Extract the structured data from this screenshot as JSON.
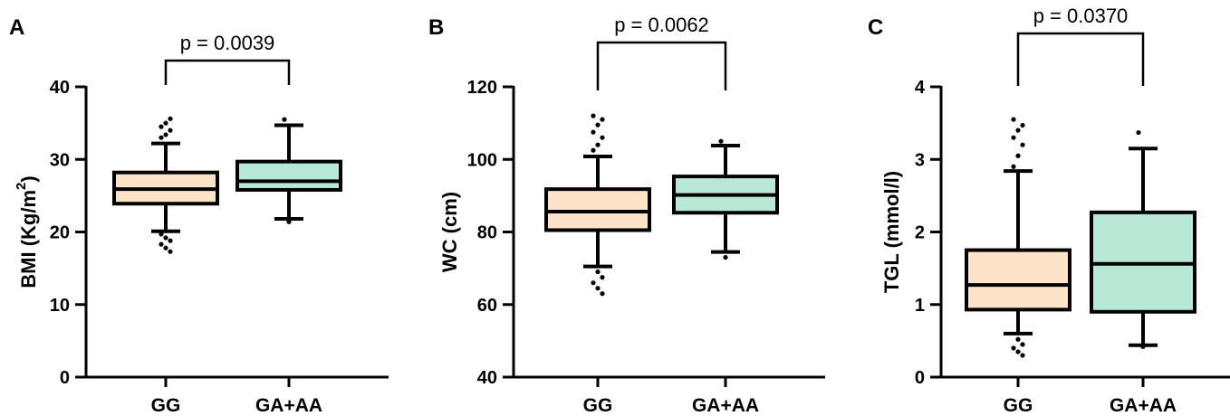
{
  "figure_colors": {
    "GG": "#fde3c8",
    "GA+AA": "#b8e8d6",
    "stroke": "#000000"
  },
  "chart_data": [
    {
      "panel": "A",
      "type": "box",
      "ylabel": "BMI (Kg/m",
      "ylabel_sup": "2",
      "ylabel_close": ")",
      "ylim": [
        0,
        40
      ],
      "yticks": [
        0,
        10,
        20,
        30,
        40
      ],
      "categories": [
        "GG",
        "GA+AA"
      ],
      "boxes": [
        {
          "category": "GG",
          "whisker_low": 20.1,
          "q1": 23.9,
          "median": 25.9,
          "q3": 28.2,
          "whisker_high": 32.2,
          "outliers": [
            33.0,
            33.4,
            34.0,
            34.5,
            35.0,
            35.6,
            19.7,
            19.2,
            18.8,
            18.3,
            17.8,
            17.3
          ]
        },
        {
          "category": "GA+AA",
          "whisker_low": 21.8,
          "q1": 25.8,
          "median": 27.0,
          "q3": 29.7,
          "whisker_high": 34.7,
          "outliers": [
            35.5,
            21.4
          ]
        }
      ],
      "comparison": {
        "text": "p = 0.0039"
      }
    },
    {
      "panel": "B",
      "type": "box",
      "ylabel": "WC (cm)",
      "ylim": [
        40,
        120
      ],
      "yticks": [
        40,
        60,
        80,
        100,
        120
      ],
      "categories": [
        "GG",
        "GA+AA"
      ],
      "boxes": [
        {
          "category": "GG",
          "whisker_low": 70.5,
          "q1": 80.5,
          "median": 85.6,
          "q3": 91.8,
          "whisker_high": 100.8,
          "outliers": [
            102.5,
            104.0,
            106.0,
            107.5,
            109.5,
            111.0,
            112.0,
            69.0,
            67.5,
            66.0,
            64.5,
            63.0
          ]
        },
        {
          "category": "GA+AA",
          "whisker_low": 74.5,
          "q1": 85.3,
          "median": 90.2,
          "q3": 95.3,
          "whisker_high": 103.8,
          "outliers": [
            105.0,
            73.0
          ]
        }
      ],
      "comparison": {
        "text": "p = 0.0062"
      }
    },
    {
      "panel": "C",
      "type": "box",
      "ylabel": "TGL (mmol/l)",
      "ylim": [
        0,
        4
      ],
      "yticks": [
        0,
        1,
        2,
        3,
        4
      ],
      "categories": [
        "GG",
        "GA+AA"
      ],
      "boxes": [
        {
          "category": "GG",
          "whisker_low": 0.6,
          "q1": 0.93,
          "median": 1.27,
          "q3": 1.75,
          "whisker_high": 2.84,
          "outliers": [
            2.9,
            3.05,
            3.2,
            3.3,
            3.4,
            3.47,
            3.55,
            0.52,
            0.45,
            0.4,
            0.35,
            0.3
          ]
        },
        {
          "category": "GA+AA",
          "whisker_low": 0.44,
          "q1": 0.9,
          "median": 1.56,
          "q3": 2.27,
          "whisker_high": 3.15,
          "outliers": [
            3.37,
            0.42
          ]
        }
      ],
      "comparison": {
        "text": "p = 0.0370"
      }
    }
  ]
}
